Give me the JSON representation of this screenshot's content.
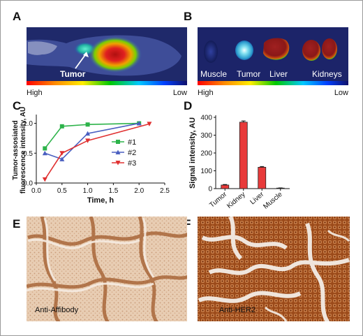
{
  "panels": {
    "a": {
      "label": "A",
      "tumor_label": "Tumor",
      "high": "High",
      "low": "Low"
    },
    "b": {
      "label": "B",
      "organs": [
        "Muscle",
        "Tumor",
        "Liver",
        "Kidneys"
      ],
      "high": "High",
      "low": "Low"
    },
    "c": {
      "label": "C"
    },
    "d": {
      "label": "D"
    },
    "e": {
      "label": "E",
      "stain": "Anti-Affibody"
    },
    "f": {
      "label": "F",
      "stain": "Anti-HER2"
    }
  },
  "chart_data": [
    {
      "type": "line",
      "panel": "C",
      "xlabel": "Time, h",
      "ylabel": "Tumor-assosiated fluorescence intensity, AU",
      "xlim": [
        0,
        2.5
      ],
      "ylim": [
        0,
        1.1
      ],
      "xticks": [
        "0.0",
        "0.5",
        "1.0",
        "1.5",
        "2.0",
        "2.5"
      ],
      "yticks": [
        "0.0",
        "0.5",
        "1.0"
      ],
      "legend_position": "right",
      "series": [
        {
          "name": "#1",
          "color": "#2db34a",
          "marker": "square",
          "x": [
            0.167,
            0.5,
            1.0,
            2.0
          ],
          "y": [
            0.58,
            0.95,
            0.98,
            1.0
          ]
        },
        {
          "name": "#2",
          "color": "#4a5fc0",
          "marker": "triangle-up",
          "x": [
            0.167,
            0.5,
            1.0,
            2.0
          ],
          "y": [
            0.5,
            0.4,
            0.83,
            1.0
          ]
        },
        {
          "name": "#3",
          "color": "#e03030",
          "marker": "triangle-down",
          "x": [
            0.167,
            0.5,
            1.0,
            2.2
          ],
          "y": [
            0.06,
            0.5,
            0.71,
            0.99
          ]
        }
      ]
    },
    {
      "type": "bar",
      "panel": "D",
      "ylabel": "Signal intensity, AU",
      "categories": [
        "Tumor",
        "Kidney",
        "Liver",
        "Muscle"
      ],
      "values": [
        20,
        373,
        120,
        3
      ],
      "errors": [
        3,
        7,
        4,
        1
      ],
      "ylim": [
        0,
        400
      ],
      "yticks": [
        "0",
        "100",
        "200",
        "300",
        "400"
      ],
      "bar_color": "#e83a3a"
    }
  ]
}
